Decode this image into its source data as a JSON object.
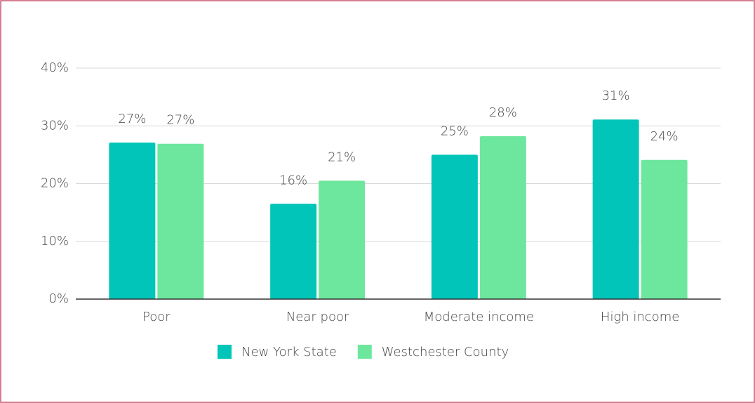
{
  "chart_data": {
    "type": "bar",
    "categories": [
      "Poor",
      "Near poor",
      "Moderate income",
      "High income"
    ],
    "series": [
      {
        "name": "New York State",
        "color": "#00c5b8",
        "values": [
          27.1,
          16.5,
          25,
          31.1
        ],
        "value_labels": [
          "27%",
          "16%",
          "25%",
          "31%"
        ]
      },
      {
        "name": "Westchester County",
        "color": "#6ee79e",
        "values": [
          26.9,
          20.5,
          28.2,
          24.1
        ],
        "value_labels": [
          "27%",
          "21%",
          "28%",
          "24%"
        ]
      }
    ],
    "ylim": [
      0,
      40
    ],
    "yticks": [
      {
        "value": 0,
        "label": "0%"
      },
      {
        "value": 10,
        "label": "10%"
      },
      {
        "value": 20,
        "label": "20%"
      },
      {
        "value": 30,
        "label": "30%"
      },
      {
        "value": 40,
        "label": "40%"
      }
    ],
    "grid": true,
    "legend": "bottom"
  }
}
